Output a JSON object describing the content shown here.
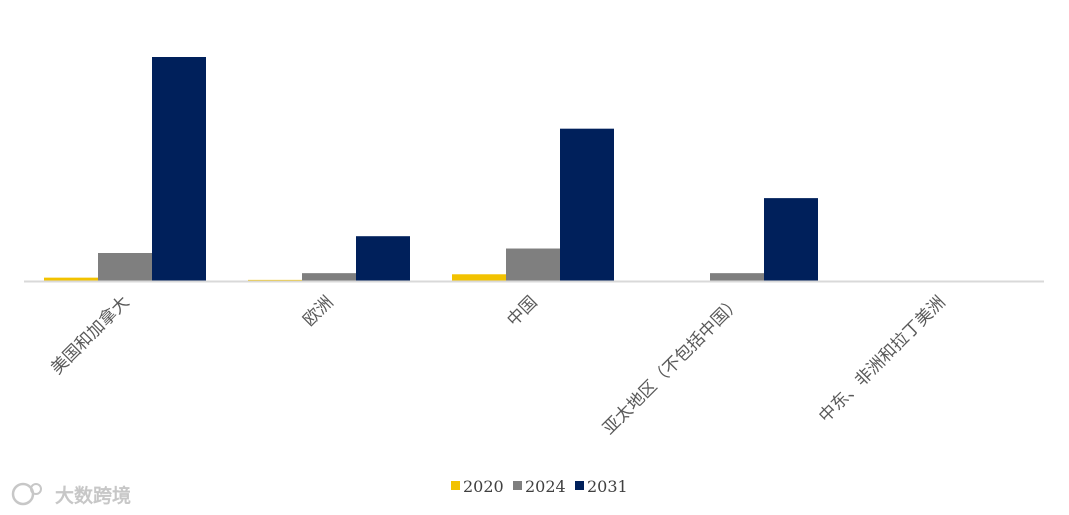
{
  "chart_data": {
    "type": "bar",
    "title": "",
    "xlabel": "",
    "ylabel": "",
    "ylim": [
      0,
      100
    ],
    "grid": false,
    "legend_position": "bottom",
    "categories": [
      "美国和加拿大",
      "欧洲",
      "中国",
      "亚太地区（不包括中国）",
      "中东、非洲和拉丁美洲"
    ],
    "series": [
      {
        "name": "2020",
        "color": "#f2c200",
        "values": [
          1.5,
          0.5,
          3.0,
          0,
          0
        ]
      },
      {
        "name": "2024",
        "color": "#7f7f7f",
        "values": [
          12.5,
          3.5,
          14.5,
          3.5,
          0
        ]
      },
      {
        "name": "2031",
        "color": "#00205b",
        "values": [
          100,
          20,
          68,
          37,
          0
        ]
      }
    ]
  },
  "watermark": {
    "text": "大数跨境"
  }
}
